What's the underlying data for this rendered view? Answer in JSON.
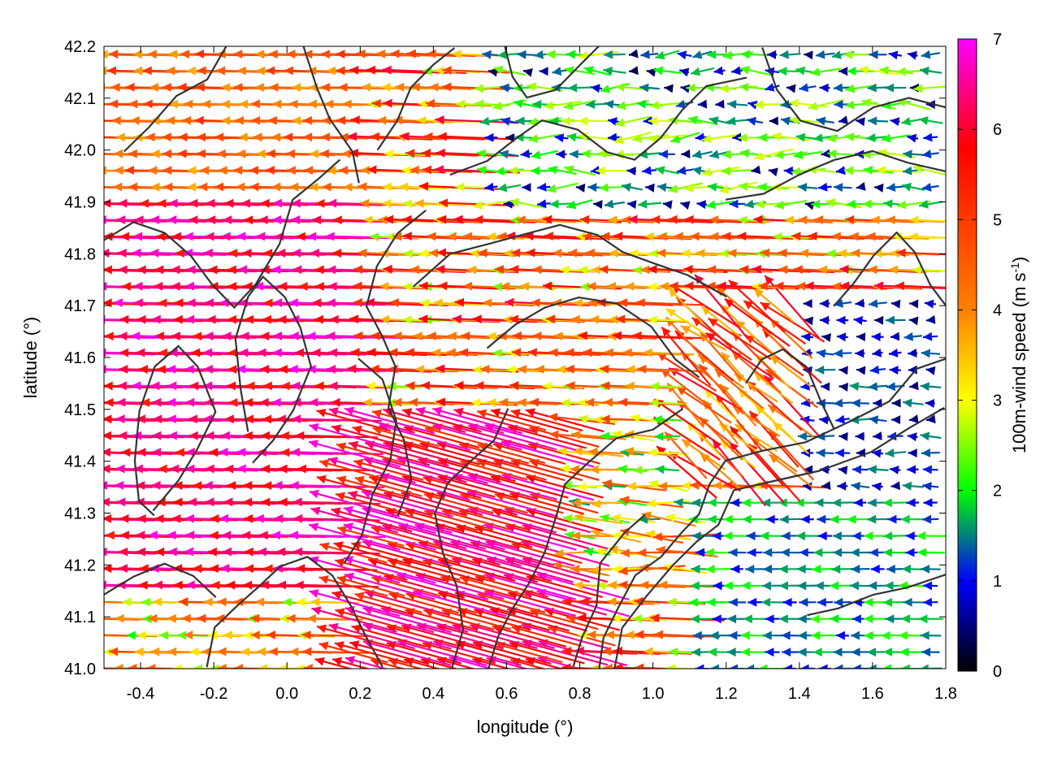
{
  "chart_data": {
    "type": "vector-field",
    "title": "",
    "xlabel": "longitude (°)",
    "ylabel": "latitude (°)",
    "xlim": [
      -0.5,
      1.8
    ],
    "ylim": [
      41.0,
      42.2
    ],
    "xticks": [
      -0.4,
      -0.2,
      0.0,
      0.2,
      0.4,
      0.6,
      0.8,
      1.0,
      1.2,
      1.4,
      1.6,
      1.8
    ],
    "xtick_labels": [
      "-0.4",
      "-0.2",
      "0.0",
      "0.2",
      "0.4",
      "0.6",
      "0.8",
      "1.0",
      "1.2",
      "1.4",
      "1.6",
      "1.8"
    ],
    "yticks": [
      41.0,
      41.1,
      41.2,
      41.3,
      41.4,
      41.5,
      41.6,
      41.7,
      41.8,
      41.9,
      42.0,
      42.1,
      42.2
    ],
    "ytick_labels": [
      "41.0",
      "41.1",
      "41.2",
      "41.3",
      "41.4",
      "41.5",
      "41.6",
      "41.7",
      "41.8",
      "41.9",
      "42.0",
      "42.1",
      "42.2"
    ],
    "grid": true,
    "colorbar": {
      "label_main": "100m-wind speed (m s",
      "label_sup": "-1",
      "label_close": ")",
      "range": [
        0,
        7
      ],
      "ticks": [
        0,
        1,
        2,
        3,
        4,
        5,
        6,
        7
      ],
      "tick_labels": [
        "0",
        "1",
        "2",
        "3",
        "4",
        "5",
        "6",
        "7"
      ],
      "colors": [
        "#000000",
        "#0000ff",
        "#00ff00",
        "#ffff00",
        "#ff8000",
        "#ff0000",
        "#ff00ff"
      ],
      "stops": [
        0,
        1,
        2,
        3,
        4,
        5.8,
        7
      ]
    },
    "vector_regions": [
      {
        "region": "west, lon -0.5..0.3, lat 41.2..41.9",
        "u": -6.5,
        "v": 0.15,
        "speed": 6.8
      },
      {
        "region": "west, lon -0.5..0.2, lat 41.9..42.2",
        "u": -4.5,
        "v": 0.15,
        "speed": 4.5
      },
      {
        "region": "central band, lon 0.3..1.2, lat 41.6..41.9",
        "u": -5.0,
        "v": 0.2,
        "speed": 5.0
      },
      {
        "region": "south-central, lon 0.3..0.9, lat 41.0..41.5",
        "u": -5.5,
        "v": 1.5,
        "speed": 6.5
      },
      {
        "region": "center-east, lon 1.1..1.4, lat 41.4..41.7",
        "u": -1.5,
        "v": 1.5,
        "speed": 4.5
      },
      {
        "region": "north-east, lon 0.6..1.8, lat 41.9..42.2",
        "u": -1.2,
        "v": 0.0,
        "speed": 1.5
      },
      {
        "region": "south-east, lon 1.2..1.8, lat 41.0..41.3",
        "u": -2.0,
        "v": 0.0,
        "speed": 1.6
      },
      {
        "region": "east, lon 1.4..1.8, lat 41.3..41.7",
        "u": -1.0,
        "v": 0.0,
        "speed": 1.0
      }
    ]
  }
}
